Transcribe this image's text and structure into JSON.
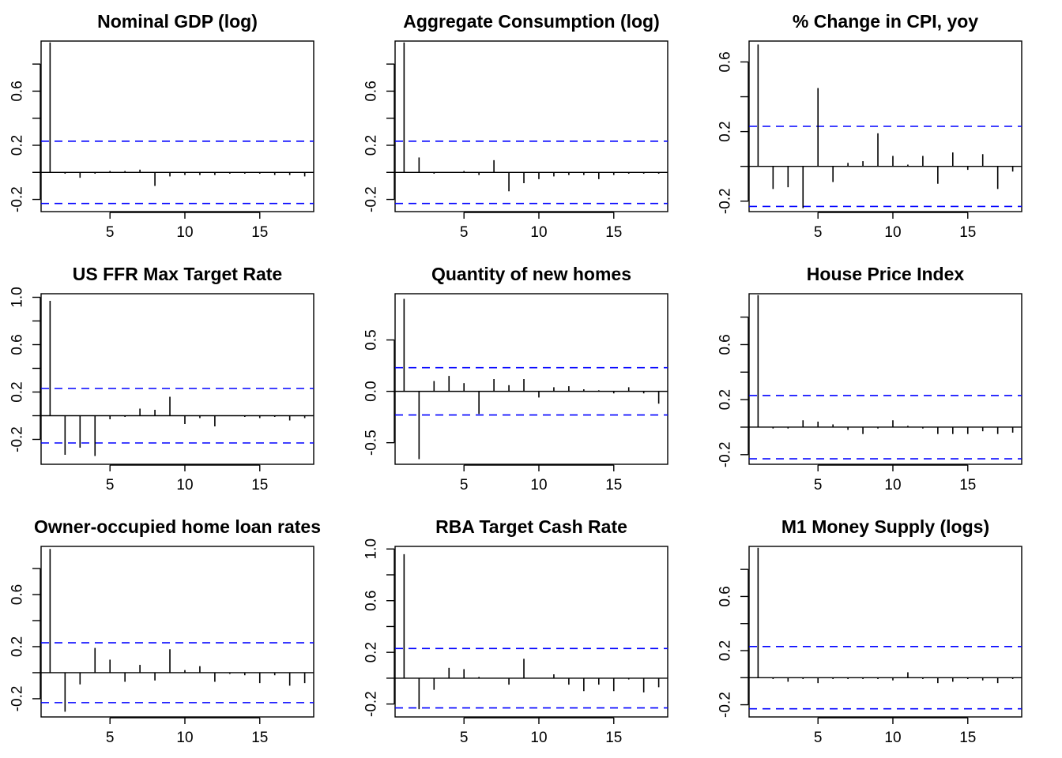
{
  "chart_data": [
    {
      "type": "bar",
      "title": "Nominal GDP (log)",
      "xlabel": "",
      "ylabel": "",
      "xlim": [
        0.4,
        18.6
      ],
      "ylim": [
        -0.29,
        0.97
      ],
      "x_ticks": [
        5,
        10,
        15
      ],
      "y_ticks": [
        -0.2,
        0.2,
        0.6
      ],
      "y_ticks_minor": [
        0.0,
        0.4,
        0.8
      ],
      "ci": 0.23,
      "lags": [
        1,
        2,
        3,
        4,
        5,
        6,
        7,
        8,
        9,
        10,
        11,
        12,
        13,
        14,
        15,
        16,
        17,
        18
      ],
      "values": [
        0.96,
        -0.01,
        -0.04,
        -0.01,
        0.01,
        0.01,
        0.02,
        -0.1,
        -0.03,
        -0.02,
        -0.02,
        -0.02,
        -0.01,
        -0.01,
        -0.01,
        -0.02,
        -0.02,
        -0.03
      ]
    },
    {
      "type": "bar",
      "title": "Aggregate Consumption (log)",
      "xlabel": "",
      "ylabel": "",
      "xlim": [
        0.4,
        18.6
      ],
      "ylim": [
        -0.29,
        0.97
      ],
      "x_ticks": [
        5,
        10,
        15
      ],
      "y_ticks": [
        -0.2,
        0.2,
        0.6
      ],
      "y_ticks_minor": [
        0.0,
        0.4,
        0.8
      ],
      "ci": 0.23,
      "lags": [
        1,
        2,
        3,
        4,
        5,
        6,
        7,
        8,
        9,
        10,
        11,
        12,
        13,
        14,
        15,
        16,
        17,
        18
      ],
      "values": [
        0.96,
        0.11,
        -0.01,
        0.0,
        0.01,
        -0.02,
        0.09,
        -0.14,
        -0.08,
        -0.05,
        -0.03,
        -0.02,
        -0.02,
        -0.05,
        -0.02,
        -0.01,
        -0.01,
        -0.01
      ]
    },
    {
      "type": "bar",
      "title": "% Change in CPI, yoy",
      "xlabel": "",
      "ylabel": "",
      "xlim": [
        0.4,
        18.6
      ],
      "ylim": [
        -0.26,
        0.72
      ],
      "x_ticks": [
        5,
        10,
        15
      ],
      "y_ticks": [
        -0.2,
        0.2,
        0.6
      ],
      "y_ticks_minor": [
        0.0,
        0.4
      ],
      "ci": 0.23,
      "lags": [
        1,
        2,
        3,
        4,
        5,
        6,
        7,
        8,
        9,
        10,
        11,
        12,
        13,
        14,
        15,
        16,
        17,
        18
      ],
      "values": [
        0.7,
        -0.13,
        -0.12,
        -0.24,
        0.45,
        -0.09,
        0.02,
        0.03,
        0.19,
        0.06,
        0.01,
        0.06,
        -0.1,
        0.08,
        -0.02,
        0.07,
        -0.13,
        -0.03
      ]
    },
    {
      "type": "bar",
      "title": "US FFR Max Target Rate",
      "xlabel": "",
      "ylabel": "",
      "xlim": [
        0.4,
        18.6
      ],
      "ylim": [
        -0.41,
        1.03
      ],
      "x_ticks": [
        5,
        10,
        15
      ],
      "y_ticks": [
        -0.2,
        0.2,
        0.6,
        1.0
      ],
      "y_ticks_minor": [
        0.0,
        0.4,
        0.8
      ],
      "ci": 0.23,
      "lags": [
        1,
        2,
        3,
        4,
        5,
        6,
        7,
        8,
        9,
        10,
        11,
        12,
        13,
        14,
        15,
        16,
        17,
        18
      ],
      "values": [
        0.97,
        -0.33,
        -0.27,
        -0.34,
        -0.03,
        -0.01,
        0.06,
        0.05,
        0.16,
        -0.07,
        -0.02,
        -0.09,
        0.0,
        -0.01,
        -0.02,
        -0.01,
        -0.04,
        -0.02
      ]
    },
    {
      "type": "bar",
      "title": "Quantity of new homes",
      "xlabel": "",
      "ylabel": "",
      "xlim": [
        0.4,
        18.6
      ],
      "ylim": [
        -0.71,
        0.95
      ],
      "x_ticks": [
        5,
        10,
        15
      ],
      "y_ticks": [
        -0.5,
        0.0,
        0.5
      ],
      "y_ticks_minor": [],
      "ci": 0.23,
      "lags": [
        1,
        2,
        3,
        4,
        5,
        6,
        7,
        8,
        9,
        10,
        11,
        12,
        13,
        14,
        15,
        16,
        17,
        18
      ],
      "values": [
        0.9,
        -0.66,
        0.1,
        0.15,
        0.08,
        -0.22,
        0.12,
        0.06,
        0.12,
        -0.06,
        0.04,
        0.05,
        0.02,
        0.01,
        -0.02,
        0.04,
        -0.02,
        -0.12
      ]
    },
    {
      "type": "bar",
      "title": "House Price Index",
      "xlabel": "",
      "ylabel": "",
      "xlim": [
        0.4,
        18.6
      ],
      "ylim": [
        -0.27,
        0.97
      ],
      "x_ticks": [
        5,
        10,
        15
      ],
      "y_ticks": [
        -0.2,
        0.2,
        0.6
      ],
      "y_ticks_minor": [
        0.0,
        0.4,
        0.8
      ],
      "ci": 0.23,
      "lags": [
        1,
        2,
        3,
        4,
        5,
        6,
        7,
        8,
        9,
        10,
        11,
        12,
        13,
        14,
        15,
        16,
        17,
        18
      ],
      "values": [
        0.96,
        -0.01,
        -0.01,
        0.05,
        0.04,
        0.02,
        -0.02,
        -0.05,
        -0.01,
        0.05,
        0.01,
        -0.01,
        -0.05,
        -0.05,
        -0.05,
        -0.03,
        -0.05,
        -0.04
      ]
    },
    {
      "type": "bar",
      "title": "Owner-occupied home loan rates",
      "xlabel": "",
      "ylabel": "",
      "xlim": [
        0.4,
        18.6
      ],
      "ylim": [
        -0.34,
        0.97
      ],
      "x_ticks": [
        5,
        10,
        15
      ],
      "y_ticks": [
        -0.2,
        0.2,
        0.6
      ],
      "y_ticks_minor": [
        0.0,
        0.4,
        0.8
      ],
      "ci": 0.23,
      "lags": [
        1,
        2,
        3,
        4,
        5,
        6,
        7,
        8,
        9,
        10,
        11,
        12,
        13,
        14,
        15,
        16,
        17,
        18
      ],
      "values": [
        0.95,
        -0.3,
        -0.09,
        0.19,
        0.1,
        -0.07,
        0.06,
        -0.06,
        0.18,
        0.02,
        0.05,
        -0.07,
        -0.01,
        -0.02,
        -0.08,
        -0.02,
        -0.1,
        -0.08
      ]
    },
    {
      "type": "bar",
      "title": "RBA Target Cash Rate",
      "xlabel": "",
      "ylabel": "",
      "xlim": [
        0.4,
        18.6
      ],
      "ylim": [
        -0.3,
        1.02
      ],
      "x_ticks": [
        5,
        10,
        15
      ],
      "y_ticks": [
        -0.2,
        0.2,
        0.6,
        1.0
      ],
      "y_ticks_minor": [
        0.0,
        0.4,
        0.8
      ],
      "ci": 0.23,
      "lags": [
        1,
        2,
        3,
        4,
        5,
        6,
        7,
        8,
        9,
        10,
        11,
        12,
        13,
        14,
        15,
        16,
        17,
        18
      ],
      "values": [
        0.96,
        -0.24,
        -0.09,
        0.08,
        0.07,
        0.01,
        0.0,
        -0.05,
        0.15,
        0.0,
        0.03,
        -0.05,
        -0.1,
        -0.05,
        -0.1,
        -0.01,
        -0.11,
        -0.07
      ]
    },
    {
      "type": "bar",
      "title": "M1 Money Supply (logs)",
      "xlabel": "",
      "ylabel": "",
      "xlim": [
        0.4,
        18.6
      ],
      "ylim": [
        -0.29,
        0.97
      ],
      "x_ticks": [
        5,
        10,
        15
      ],
      "y_ticks": [
        -0.2,
        0.2,
        0.6
      ],
      "y_ticks_minor": [
        0.0,
        0.4,
        0.8
      ],
      "ci": 0.23,
      "lags": [
        1,
        2,
        3,
        4,
        5,
        6,
        7,
        8,
        9,
        10,
        11,
        12,
        13,
        14,
        15,
        16,
        17,
        18
      ],
      "values": [
        0.96,
        -0.01,
        -0.03,
        -0.01,
        -0.04,
        -0.01,
        -0.01,
        -0.01,
        -0.01,
        -0.02,
        0.04,
        -0.01,
        -0.04,
        -0.03,
        -0.01,
        -0.02,
        -0.04,
        -0.01
      ]
    }
  ],
  "colors": {
    "spike": "#000000",
    "ci_line": "#0000ff",
    "frame": "#000000"
  }
}
